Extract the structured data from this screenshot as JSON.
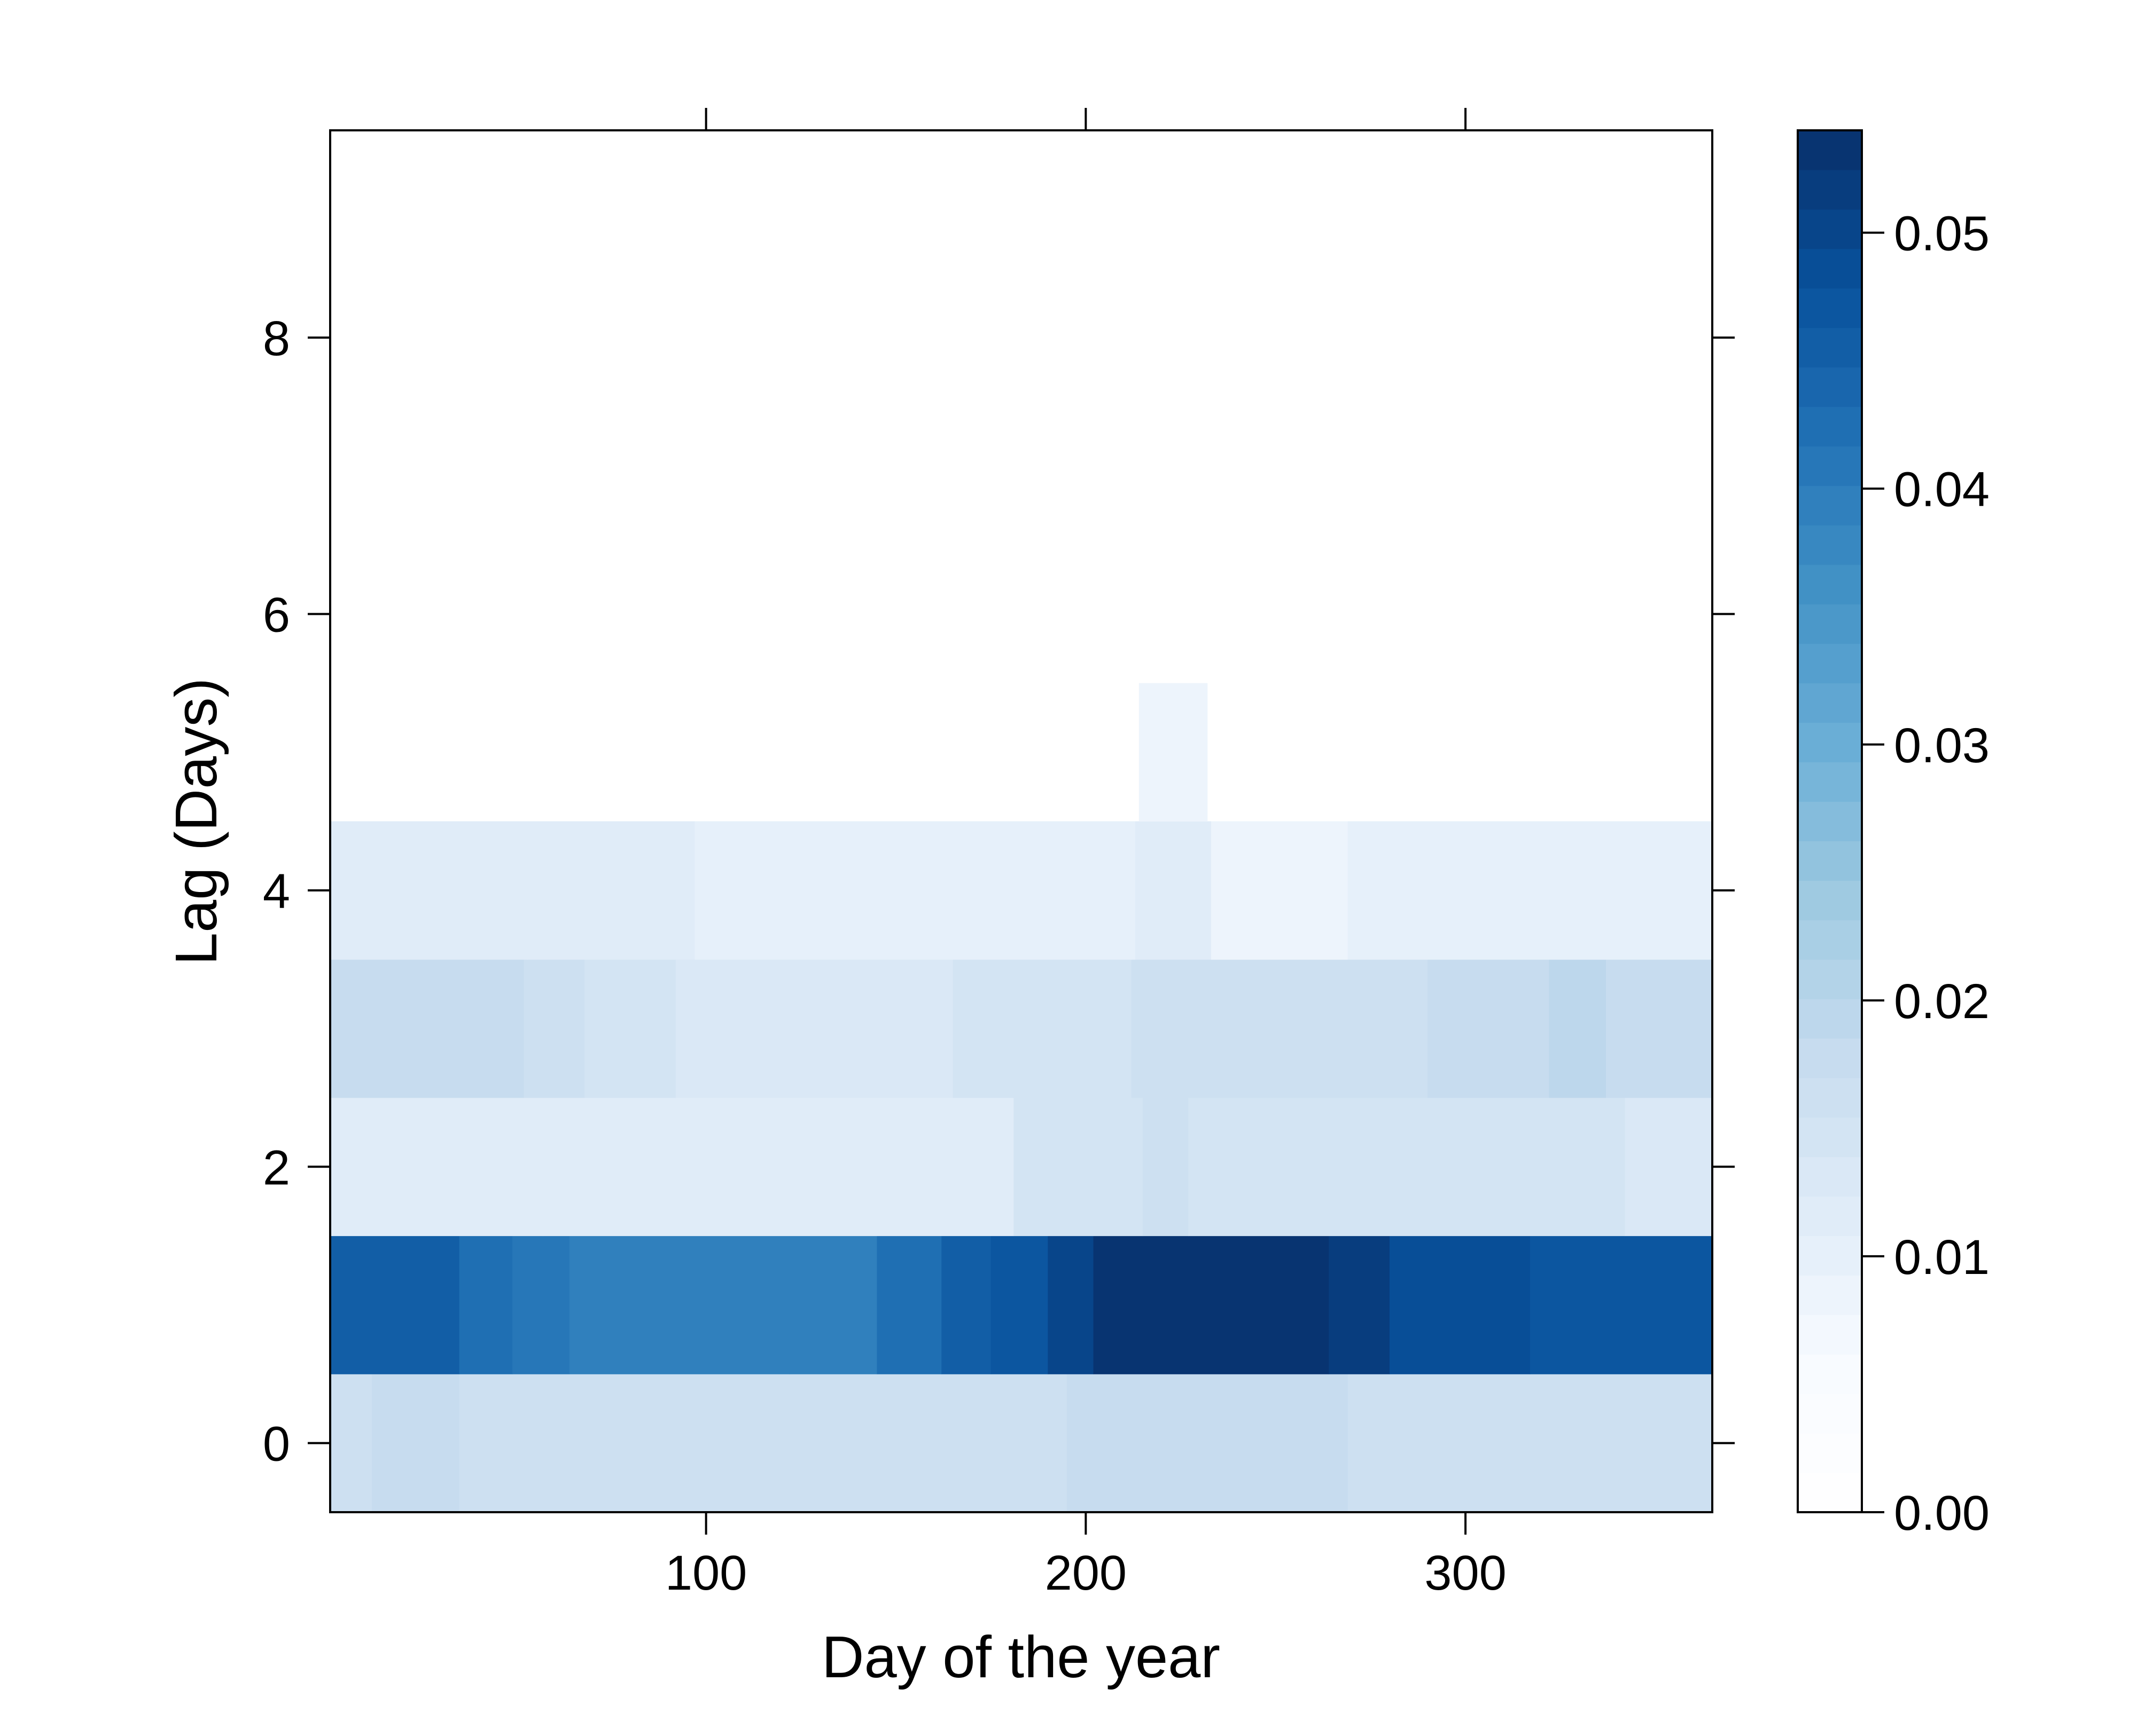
{
  "chart_data": {
    "type": "heatmap",
    "xlabel": "Day of the year",
    "ylabel": "Lag (Days)",
    "xlim": [
      1,
      365
    ],
    "ylim": [
      -0.5,
      9.5
    ],
    "xticks": [
      100,
      200,
      300
    ],
    "yticks": [
      0,
      2,
      4,
      6,
      8
    ],
    "xtick_labels": [
      "100",
      "200",
      "300"
    ],
    "ytick_labels": [
      "0",
      "2",
      "4",
      "6",
      "8"
    ],
    "colorbar": {
      "range": [
        0.0,
        0.054
      ],
      "ticks": [
        0.0,
        0.01,
        0.02,
        0.03,
        0.04,
        0.05
      ],
      "tick_labels": [
        "0.00",
        "0.01",
        "0.02",
        "0.03",
        "0.04",
        "0.05"
      ],
      "levels": 35,
      "colors": [
        "#ffffff",
        "#f7fbff",
        "#deebf7",
        "#c6dbef",
        "#9ecae1",
        "#6baed6",
        "#4292c6",
        "#2171b5",
        "#08519c",
        "#08306b"
      ]
    },
    "rows": [
      {
        "lag": 0,
        "segments": [
          {
            "x0": 1,
            "x1": 12,
            "value": 0.016
          },
          {
            "x0": 12,
            "x1": 35,
            "value": 0.018
          },
          {
            "x0": 35,
            "x1": 195,
            "value": 0.016
          },
          {
            "x0": 195,
            "x1": 269,
            "value": 0.018
          },
          {
            "x0": 269,
            "x1": 365,
            "value": 0.016
          }
        ]
      },
      {
        "lag": 1,
        "segments": [
          {
            "x0": 1,
            "x1": 35,
            "value": 0.046
          },
          {
            "x0": 35,
            "x1": 49,
            "value": 0.043
          },
          {
            "x0": 49,
            "x1": 64,
            "value": 0.041
          },
          {
            "x0": 64,
            "x1": 122,
            "value": 0.039
          },
          {
            "x0": 122,
            "x1": 145,
            "value": 0.04
          },
          {
            "x0": 145,
            "x1": 162,
            "value": 0.043
          },
          {
            "x0": 162,
            "x1": 175,
            "value": 0.045
          },
          {
            "x0": 175,
            "x1": 190,
            "value": 0.047
          },
          {
            "x0": 190,
            "x1": 202,
            "value": 0.05
          },
          {
            "x0": 202,
            "x1": 264,
            "value": 0.053
          },
          {
            "x0": 264,
            "x1": 280,
            "value": 0.051
          },
          {
            "x0": 280,
            "x1": 317,
            "value": 0.049
          },
          {
            "x0": 317,
            "x1": 365,
            "value": 0.047
          }
        ]
      },
      {
        "lag": 2,
        "segments": [
          {
            "x0": 1,
            "x1": 57,
            "value": 0.012
          },
          {
            "x0": 57,
            "x1": 150,
            "value": 0.011
          },
          {
            "x0": 150,
            "x1": 181,
            "value": 0.012
          },
          {
            "x0": 181,
            "x1": 215,
            "value": 0.014
          },
          {
            "x0": 215,
            "x1": 227,
            "value": 0.016
          },
          {
            "x0": 227,
            "x1": 342,
            "value": 0.014
          },
          {
            "x0": 342,
            "x1": 365,
            "value": 0.013
          }
        ]
      },
      {
        "lag": 3,
        "segments": [
          {
            "x0": 1,
            "x1": 52,
            "value": 0.018
          },
          {
            "x0": 52,
            "x1": 68,
            "value": 0.016
          },
          {
            "x0": 68,
            "x1": 92,
            "value": 0.014
          },
          {
            "x0": 92,
            "x1": 165,
            "value": 0.013
          },
          {
            "x0": 165,
            "x1": 212,
            "value": 0.014
          },
          {
            "x0": 212,
            "x1": 290,
            "value": 0.016
          },
          {
            "x0": 290,
            "x1": 322,
            "value": 0.018
          },
          {
            "x0": 322,
            "x1": 337,
            "value": 0.019
          },
          {
            "x0": 337,
            "x1": 365,
            "value": 0.018
          }
        ]
      },
      {
        "lag": 4,
        "segments": [
          {
            "x0": 1,
            "x1": 6,
            "value": 0.012
          },
          {
            "x0": 6,
            "x1": 53,
            "value": 0.011
          },
          {
            "x0": 53,
            "x1": 97,
            "value": 0.011
          },
          {
            "x0": 97,
            "x1": 213,
            "value": 0.01
          },
          {
            "x0": 213,
            "x1": 233,
            "value": 0.011
          },
          {
            "x0": 233,
            "x1": 269,
            "value": 0.009
          },
          {
            "x0": 269,
            "x1": 365,
            "value": 0.01
          }
        ]
      },
      {
        "lag": 5,
        "segments": [
          {
            "x0": 214,
            "x1": 232,
            "value": 0.008
          }
        ]
      }
    ]
  }
}
